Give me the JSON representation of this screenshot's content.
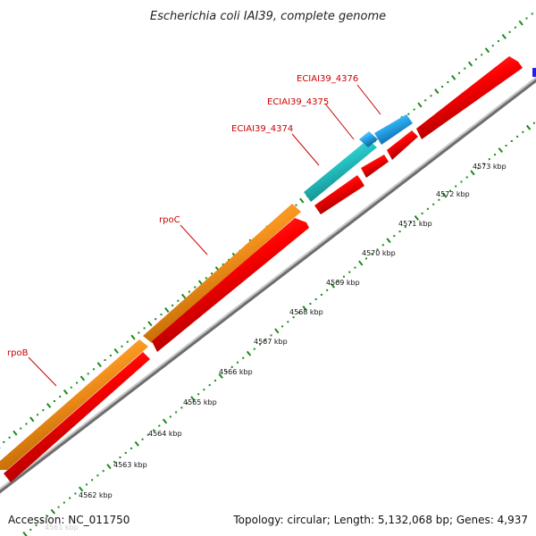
{
  "title": "Escherichia coli IAI39, complete genome",
  "footer": {
    "accession": "Accession: NC_011750",
    "summary": "Topology: circular; Length: 5,132,068 bp; Genes: 4,937"
  },
  "gene_labels": [
    "ECIAI39_4376",
    "ECIAI39_4375",
    "ECIAI39_4374",
    "rpoC",
    "rpoB"
  ],
  "tick_labels": [
    "4573 kbp",
    "4572 kbp",
    "4571 kbp",
    "4570 kbp",
    "4569 kbp",
    "4568 kbp",
    "4567 kbp",
    "4566 kbp",
    "4565 kbp",
    "4564 kbp",
    "4563 kbp",
    "4562 kbp",
    "4561 kbp"
  ],
  "colors": {
    "background": "#ffffff",
    "rpo_gene": "#f7941e",
    "cds": "#ff0000",
    "cyan_gene_a": "#27c7c7",
    "cyan_gene_b": "#29a9ee",
    "label_red": "#cc0000",
    "backbone": "#9a9a9a",
    "ticks_green": "#1a8a1a",
    "edge_marker": "#2020ee"
  }
}
